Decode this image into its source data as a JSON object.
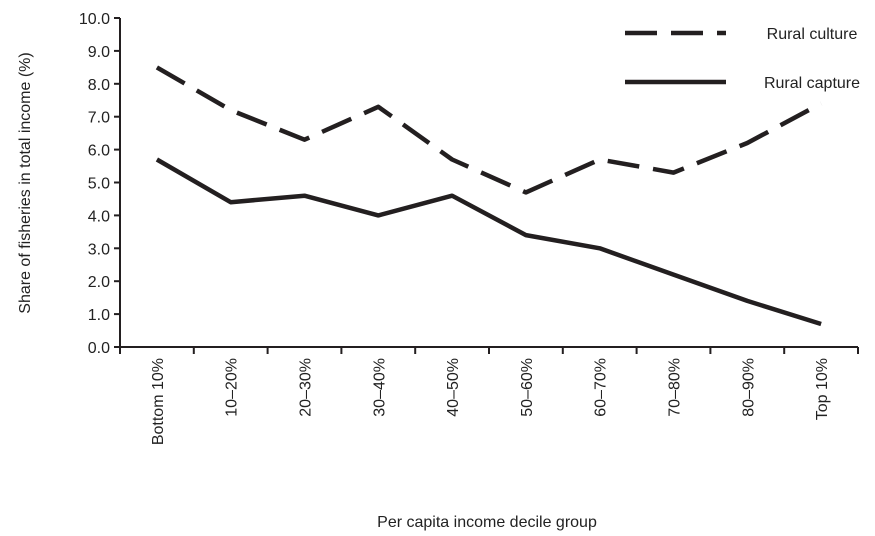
{
  "chart_data": {
    "type": "line",
    "title": "",
    "xlabel": "Per capita income decile group",
    "ylabel": "Share of fisheries in total income (%)",
    "ylim": [
      0,
      10
    ],
    "yticks": [
      "0.0",
      "1.0",
      "2.0",
      "3.0",
      "4.0",
      "5.0",
      "6.0",
      "7.0",
      "8.0",
      "9.0",
      "10.0"
    ],
    "grid": false,
    "legend_position": "top-right",
    "categories": [
      "Bottom 10%",
      "10–20%",
      "20–30%",
      "30–40%",
      "40–50%",
      "50–60%",
      "60–70%",
      "70–80%",
      "80–90%",
      "Top 10%"
    ],
    "series": [
      {
        "name": "Rural culture",
        "style": "dashed",
        "color": "#231f20",
        "values": [
          8.5,
          7.2,
          6.3,
          7.3,
          5.7,
          4.7,
          5.7,
          5.3,
          6.2,
          7.4
        ]
      },
      {
        "name": "Rural capture",
        "style": "solid",
        "color": "#231f20",
        "values": [
          5.7,
          4.4,
          4.6,
          4.0,
          4.6,
          3.4,
          3.0,
          2.2,
          1.4,
          0.7
        ]
      }
    ]
  }
}
